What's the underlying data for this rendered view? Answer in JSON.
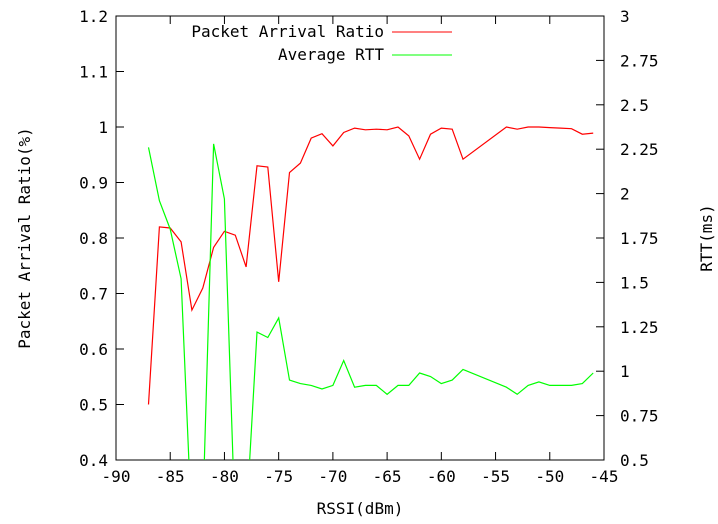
{
  "chart_data": {
    "type": "line",
    "xlabel": "RSSI(dBm)",
    "ylabel_left": "Packet Arrival Ratio(%)",
    "ylabel_right": "RTT(ms)",
    "xlim": [
      -90,
      -45
    ],
    "ylim_left": [
      0.4,
      1.2
    ],
    "ylim_right": [
      0.5,
      3
    ],
    "x_ticks": [
      "-90",
      "-85",
      "-80",
      "-75",
      "-70",
      "-65",
      "-60",
      "-55",
      "-50",
      "-45"
    ],
    "y_left_ticks": [
      "0.4",
      "0.5",
      "0.6",
      "0.7",
      "0.8",
      "0.9",
      "1",
      "1.1",
      "1.2"
    ],
    "y_right_ticks": [
      "0.5",
      "0.75",
      "1",
      "1.25",
      "1.5",
      "1.75",
      "2",
      "2.25",
      "2.5",
      "2.75",
      "3"
    ],
    "legend_position": "top-right",
    "grid": false,
    "series": [
      {
        "name": "Packet Arrival Ratio",
        "axis": "left",
        "color": "#ff0000",
        "x": [
          -87,
          -86,
          -85,
          -84,
          -83,
          -82,
          -81,
          -80,
          -79,
          -78,
          -77,
          -76,
          -75,
          -74,
          -73,
          -72,
          -71,
          -70,
          -69,
          -68,
          -67,
          -66,
          -65,
          -64,
          -63,
          -62,
          -61,
          -60,
          -59,
          -58,
          -54,
          -53,
          -52,
          -51,
          -50,
          -49,
          -48,
          -47,
          -46
        ],
        "values": [
          0.5,
          0.82,
          0.818,
          0.793,
          0.67,
          0.71,
          0.783,
          0.812,
          0.805,
          0.748,
          0.93,
          0.928,
          0.721,
          0.918,
          0.935,
          0.98,
          0.988,
          0.966,
          0.99,
          0.998,
          0.995,
          0.996,
          0.995,
          1.0,
          0.984,
          0.942,
          0.987,
          0.998,
          0.996,
          0.942,
          1.0,
          0.996,
          1.0,
          1.0,
          0.999,
          0.998,
          0.997,
          0.987,
          0.989
        ]
      },
      {
        "name": "Average RTT",
        "axis": "right",
        "color": "#00ff00",
        "x": [
          -87,
          -86,
          -85,
          -84,
          -83,
          -82,
          -81,
          -80,
          -79,
          -78,
          -77,
          -76,
          -75,
          -74,
          -73,
          -72,
          -71,
          -70,
          -69,
          -68,
          -67,
          -66,
          -65,
          -64,
          -63,
          -62,
          -61,
          -60,
          -59,
          -58,
          -54,
          -53,
          -52,
          -51,
          -50,
          -49,
          -48,
          -47,
          -46
        ],
        "values": [
          2.26,
          1.96,
          1.8,
          1.52,
          0.1,
          0.2,
          2.28,
          1.97,
          0.1,
          0.15,
          1.22,
          1.19,
          1.3,
          0.95,
          0.93,
          0.92,
          0.9,
          0.92,
          1.06,
          0.91,
          0.92,
          0.92,
          0.87,
          0.92,
          0.92,
          0.99,
          0.97,
          0.93,
          0.95,
          1.01,
          0.91,
          0.87,
          0.92,
          0.94,
          0.92,
          0.92,
          0.92,
          0.93,
          0.99
        ]
      }
    ]
  }
}
